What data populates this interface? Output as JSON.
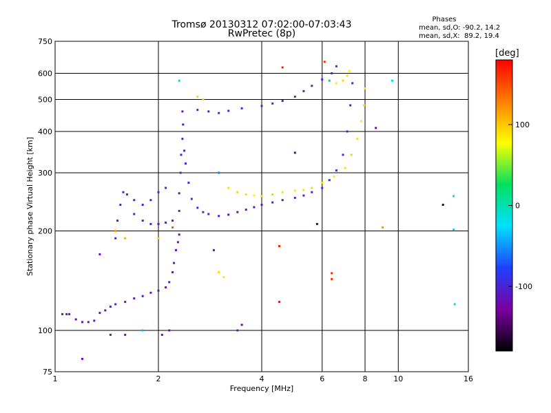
{
  "chart_data": {
    "type": "scatter",
    "title": "Tromsø 20130312 07:02:00-07:03:43",
    "subtitle": "RwPretec (8p)",
    "stats": {
      "heading": "Phases",
      "line1": "mean, sd,O: -90.2, 14.2",
      "line2": "mean, sd,X:  89.2, 19.4"
    },
    "xlabel": "Frequency [MHz]",
    "ylabel": "Stationary phase Virtual Height [km]",
    "x_scale": "log",
    "y_scale": "log",
    "xlim": [
      1,
      16
    ],
    "ylim": [
      75,
      750
    ],
    "x_ticks": [
      1,
      2,
      4,
      6,
      8,
      10,
      16
    ],
    "x_tick_labels": [
      "1",
      "2",
      "4",
      "6",
      "8",
      "10",
      "16"
    ],
    "y_ticks": [
      75,
      100,
      200,
      300,
      400,
      500,
      600,
      750
    ],
    "y_tick_labels": [
      "75",
      "100",
      "200",
      "300",
      "400",
      "500",
      "600",
      "750"
    ],
    "grid": true,
    "colorbar": {
      "label": "[deg]",
      "range": [
        -180,
        180
      ],
      "ticks": [
        100,
        0,
        -100
      ],
      "tick_labels": [
        "100",
        "0",
        "-100"
      ],
      "colors": [
        "#000000",
        "#7a00a0",
        "#2040ff",
        "#00e0ff",
        "#00e060",
        "#ffff00",
        "#ff8000",
        "#ff0000"
      ]
    },
    "series": [
      {
        "points": [
          [
            1.05,
            112,
            -110
          ],
          [
            1.08,
            112,
            -110
          ],
          [
            1.1,
            112,
            -105
          ],
          [
            1.15,
            108,
            -110
          ],
          [
            1.2,
            106,
            -110
          ],
          [
            1.25,
            106,
            -110
          ],
          [
            1.3,
            107,
            -105
          ],
          [
            1.35,
            113,
            -110
          ],
          [
            1.4,
            115,
            -105
          ],
          [
            1.45,
            118,
            -100
          ],
          [
            1.5,
            120,
            -105
          ],
          [
            1.6,
            122,
            -110
          ],
          [
            1.7,
            125,
            -110
          ],
          [
            1.8,
            127,
            -105
          ],
          [
            1.9,
            130,
            -110
          ],
          [
            2.0,
            132,
            -105
          ],
          [
            2.1,
            135,
            -110
          ],
          [
            2.15,
            140,
            -105
          ],
          [
            2.2,
            150,
            -110
          ],
          [
            2.22,
            160,
            -105
          ],
          [
            2.25,
            175,
            -110
          ],
          [
            2.28,
            185,
            -105
          ],
          [
            2.3,
            195,
            -110
          ],
          [
            2.3,
            230,
            -105
          ],
          [
            2.3,
            260,
            -110
          ],
          [
            2.32,
            300,
            -100
          ],
          [
            2.33,
            340,
            -105
          ],
          [
            2.35,
            380,
            -110
          ],
          [
            2.36,
            420,
            -105
          ],
          [
            2.35,
            460,
            -110
          ],
          [
            2.38,
            350,
            -100
          ],
          [
            2.4,
            320,
            -95
          ],
          [
            2.45,
            280,
            -100
          ],
          [
            2.5,
            250,
            -95
          ],
          [
            2.6,
            235,
            -100
          ],
          [
            2.7,
            228,
            -95
          ],
          [
            2.8,
            225,
            -100
          ],
          [
            3.0,
            222,
            -105
          ],
          [
            3.2,
            224,
            -115
          ],
          [
            3.4,
            228,
            -120
          ],
          [
            3.6,
            232,
            -115
          ],
          [
            3.8,
            236,
            -110
          ],
          [
            4.0,
            240,
            -105
          ],
          [
            4.3,
            244,
            -100
          ],
          [
            4.6,
            248,
            -105
          ],
          [
            5.0,
            252,
            -100
          ],
          [
            5.3,
            256,
            -105
          ],
          [
            5.6,
            262,
            -100
          ],
          [
            6.0,
            270,
            -95
          ],
          [
            6.3,
            285,
            -95
          ],
          [
            6.6,
            305,
            -100
          ],
          [
            6.9,
            340,
            -100
          ],
          [
            7.1,
            400,
            -95
          ],
          [
            7.25,
            480,
            -100
          ],
          [
            7.35,
            560,
            -95
          ],
          [
            1.5,
            190,
            -100
          ],
          [
            1.52,
            215,
            -105
          ],
          [
            1.55,
            240,
            -100
          ],
          [
            1.58,
            262,
            -105
          ],
          [
            1.62,
            258,
            -100
          ],
          [
            1.7,
            248,
            -100
          ],
          [
            1.8,
            240,
            -105
          ],
          [
            1.9,
            248,
            -100
          ],
          [
            2.0,
            262,
            -105
          ],
          [
            2.1,
            270,
            -100
          ],
          [
            1.7,
            225,
            -105
          ],
          [
            1.8,
            215,
            -100
          ],
          [
            1.9,
            210,
            -105
          ],
          [
            2.0,
            210,
            -110
          ],
          [
            2.1,
            212,
            -105
          ],
          [
            2.2,
            215,
            -110
          ],
          [
            2.6,
            465,
            -100
          ],
          [
            2.8,
            460,
            -105
          ],
          [
            3.0,
            455,
            -100
          ],
          [
            3.2,
            462,
            -105
          ],
          [
            3.5,
            470,
            -100
          ],
          [
            4.0,
            478,
            -105
          ],
          [
            4.3,
            486,
            -100
          ],
          [
            4.6,
            495,
            -105
          ],
          [
            5.0,
            510,
            -100
          ],
          [
            5.3,
            530,
            -105
          ],
          [
            5.6,
            550,
            -100
          ],
          [
            6.0,
            575,
            -95
          ],
          [
            6.4,
            600,
            -100
          ],
          [
            6.6,
            630,
            -95
          ]
        ]
      },
      {
        "points": [
          [
            3.2,
            270,
            90
          ],
          [
            3.4,
            262,
            95
          ],
          [
            3.6,
            258,
            90
          ],
          [
            3.8,
            256,
            85
          ],
          [
            4.0,
            255,
            90
          ],
          [
            4.3,
            258,
            95
          ],
          [
            4.6,
            262,
            90
          ],
          [
            5.0,
            265,
            85
          ],
          [
            5.3,
            266,
            90
          ],
          [
            5.6,
            270,
            95
          ],
          [
            6.0,
            280,
            90
          ],
          [
            6.5,
            292,
            85
          ],
          [
            7.0,
            310,
            90
          ],
          [
            7.3,
            340,
            95
          ],
          [
            7.6,
            380,
            90
          ],
          [
            7.8,
            430,
            85
          ],
          [
            7.95,
            480,
            95
          ],
          [
            8.0,
            540,
            90
          ],
          [
            6.6,
            560,
            85
          ],
          [
            6.9,
            570,
            95
          ],
          [
            7.1,
            590,
            90
          ],
          [
            7.2,
            610,
            85
          ],
          [
            1.5,
            200,
            120
          ],
          [
            1.6,
            190,
            110
          ],
          [
            2.0,
            190,
            100
          ],
          [
            3.0,
            150,
            90
          ],
          [
            3.1,
            145,
            85
          ],
          [
            2.6,
            510,
            95
          ],
          [
            2.7,
            500,
            90
          ],
          [
            9.0,
            205,
            120
          ]
        ]
      },
      {
        "points": [
          [
            4.6,
            625,
            170
          ],
          [
            6.1,
            650,
            160
          ],
          [
            4.5,
            180,
            165
          ],
          [
            4.5,
            122,
            175
          ],
          [
            6.4,
            143,
            160
          ],
          [
            6.4,
            149,
            165
          ],
          [
            2.2,
            205,
            150
          ]
        ]
      },
      {
        "points": [
          [
            2.3,
            570,
            0
          ],
          [
            6.3,
            570,
            20
          ],
          [
            1.8,
            100,
            -40
          ],
          [
            9.6,
            570,
            -20
          ],
          [
            14.5,
            255,
            -10
          ],
          [
            14.5,
            202,
            -20
          ],
          [
            14.6,
            120,
            -30
          ],
          [
            3.0,
            300,
            -60
          ]
        ]
      },
      {
        "points": [
          [
            13.5,
            240,
            -160
          ],
          [
            5.8,
            210,
            -150
          ],
          [
            5.0,
            345,
            -140
          ],
          [
            8.6,
            410,
            -130
          ],
          [
            2.9,
            175,
            -120
          ],
          [
            1.35,
            170,
            -110
          ],
          [
            1.2,
            82,
            -120
          ],
          [
            1.45,
            97,
            -110
          ],
          [
            1.6,
            97,
            -115
          ],
          [
            2.05,
            97,
            -110
          ],
          [
            2.15,
            100,
            -115
          ],
          [
            3.4,
            100,
            -110
          ],
          [
            3.5,
            104,
            -120
          ]
        ]
      }
    ]
  }
}
